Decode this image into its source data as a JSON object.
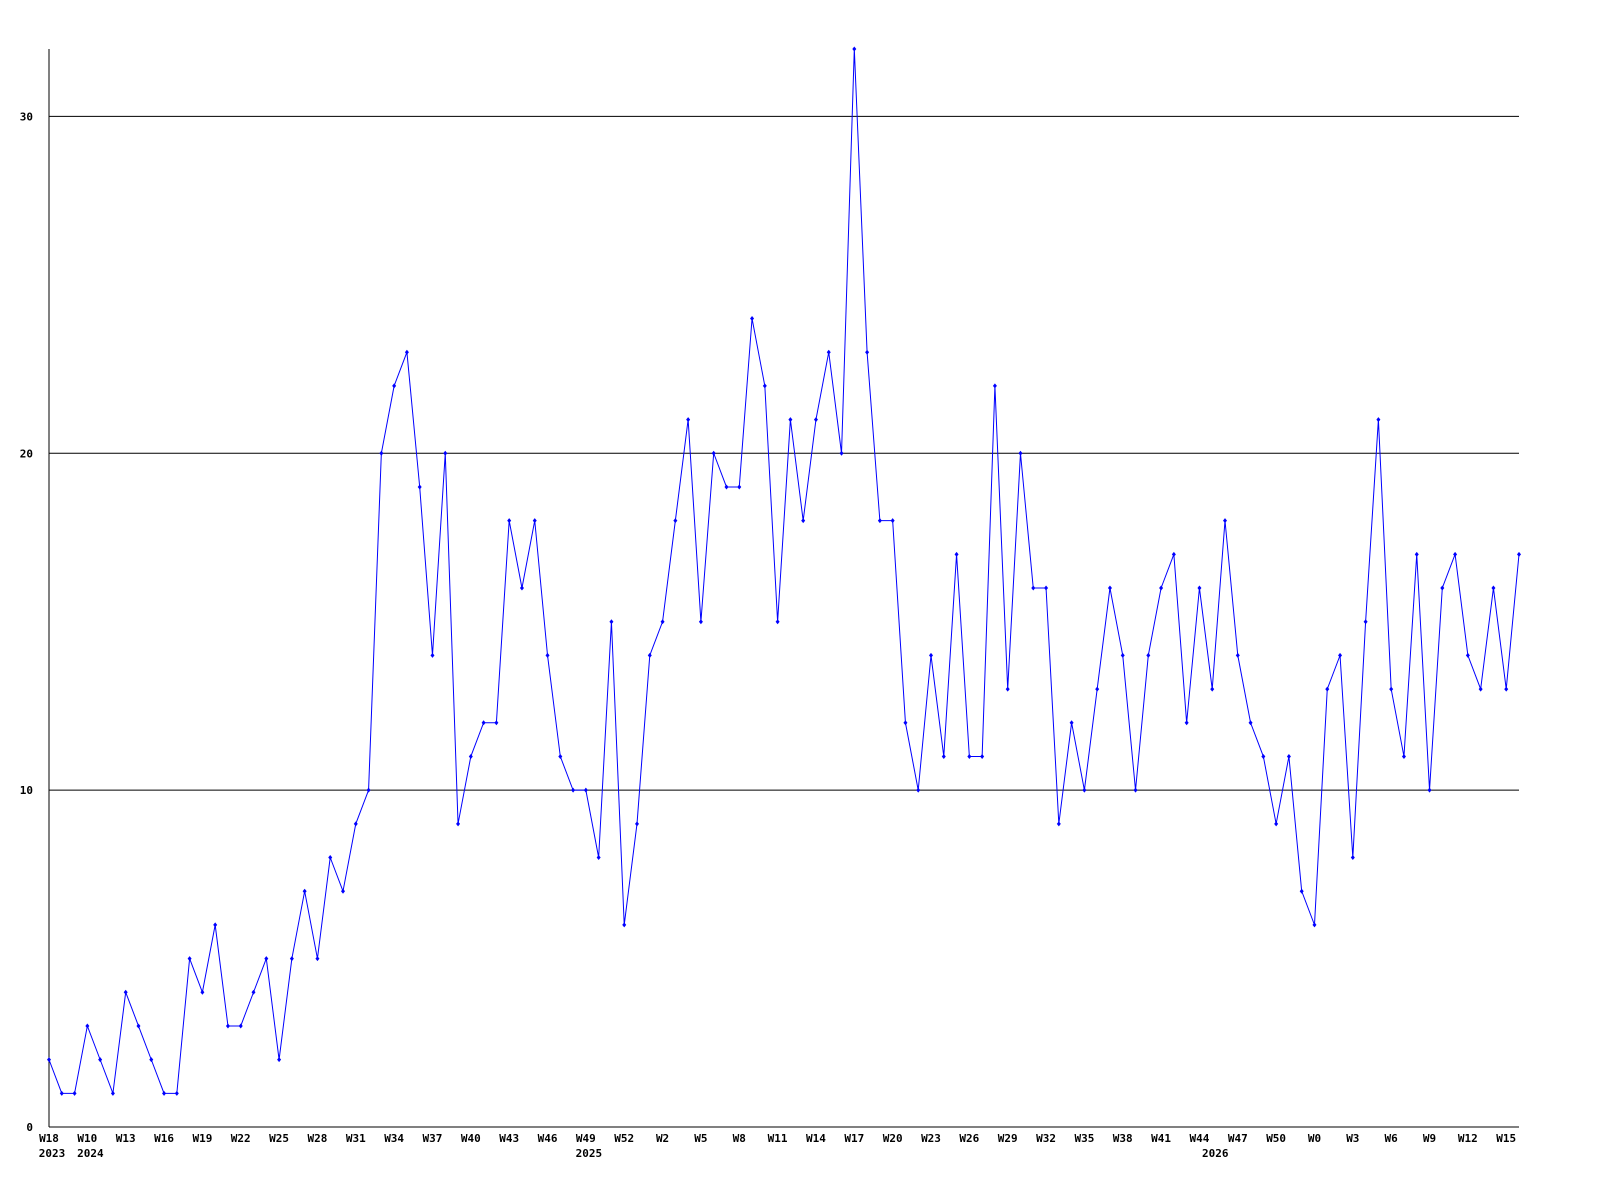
{
  "chart_data": {
    "type": "line",
    "categories": [
      "W18",
      null,
      null,
      "W10",
      null,
      null,
      "W13",
      null,
      null,
      "W16",
      null,
      null,
      "W19",
      null,
      null,
      "W22",
      null,
      null,
      "W25",
      null,
      null,
      "W28",
      null,
      null,
      "W31",
      null,
      null,
      "W34",
      null,
      null,
      "W37",
      null,
      null,
      "W40",
      null,
      null,
      "W43",
      null,
      null,
      "W46",
      null,
      null,
      "W49",
      null,
      null,
      "W52",
      null,
      null,
      "W2",
      null,
      null,
      "W5",
      null,
      null,
      "W8",
      null,
      null,
      "W11",
      null,
      null,
      "W14",
      null,
      null,
      "W17",
      null,
      null,
      "W20",
      null,
      null,
      "W23",
      null,
      null,
      "W26",
      null,
      null,
      "W29",
      null,
      null,
      "W32",
      null,
      null,
      "W35",
      null,
      null,
      "W38",
      null,
      null,
      "W41",
      null,
      null,
      "W44",
      null,
      null,
      "W47",
      null,
      null,
      "W50",
      null,
      null,
      "W0",
      null,
      null,
      "W3",
      null,
      null,
      "W6",
      null,
      null,
      "W9",
      null,
      null,
      "W12",
      null,
      null,
      "W15",
      null
    ],
    "category_years": [
      "2023",
      null,
      null,
      "2024",
      null,
      null,
      null,
      null,
      null,
      null,
      null,
      null,
      null,
      null,
      null,
      null,
      null,
      null,
      null,
      null,
      null,
      null,
      null,
      null,
      null,
      null,
      null,
      null,
      null,
      null,
      null,
      null,
      null,
      null,
      null,
      null,
      null,
      null,
      null,
      null,
      null,
      null,
      "2025",
      null,
      null,
      null,
      null,
      null,
      null,
      null,
      null,
      null,
      null,
      null,
      null,
      null,
      null,
      null,
      null,
      null,
      null,
      null,
      null,
      null,
      null,
      null,
      null,
      null,
      null,
      null,
      null,
      null,
      null,
      null,
      null,
      null,
      null,
      null,
      null,
      null,
      null,
      null,
      null,
      null,
      null,
      null,
      null,
      null,
      null,
      null,
      null,
      "2026",
      null,
      null,
      null,
      null,
      null,
      null,
      null,
      null,
      null,
      null,
      null,
      null,
      null,
      null,
      null,
      null
    ],
    "values": [
      2,
      1,
      1,
      3,
      2,
      1,
      4,
      3,
      2,
      1,
      1,
      5,
      4,
      6,
      3,
      3,
      4,
      5,
      2,
      5,
      7,
      5,
      8,
      7,
      9,
      10,
      20,
      22,
      23,
      19,
      14,
      20,
      9,
      11,
      12,
      12,
      18,
      16,
      18,
      14,
      11,
      10,
      10,
      8,
      15,
      6,
      9,
      14,
      15,
      18,
      21,
      15,
      20,
      19,
      19,
      24,
      22,
      15,
      21,
      18,
      21,
      23,
      20,
      32,
      23,
      18,
      18,
      12,
      10,
      14,
      11,
      17,
      11,
      11,
      22,
      13,
      20,
      16,
      16,
      9,
      12,
      10,
      13,
      16,
      14,
      10,
      14,
      16,
      17,
      12,
      16,
      13,
      18,
      14,
      12,
      11,
      9,
      11,
      7,
      6,
      13,
      14,
      8,
      15,
      21,
      13,
      11,
      17,
      10,
      16,
      17,
      14,
      13,
      16,
      13,
      17
    ],
    "color": "#0000ff",
    "ylim": [
      0,
      32
    ],
    "yticks": [
      0,
      10,
      20,
      30
    ],
    "grid": true
  }
}
